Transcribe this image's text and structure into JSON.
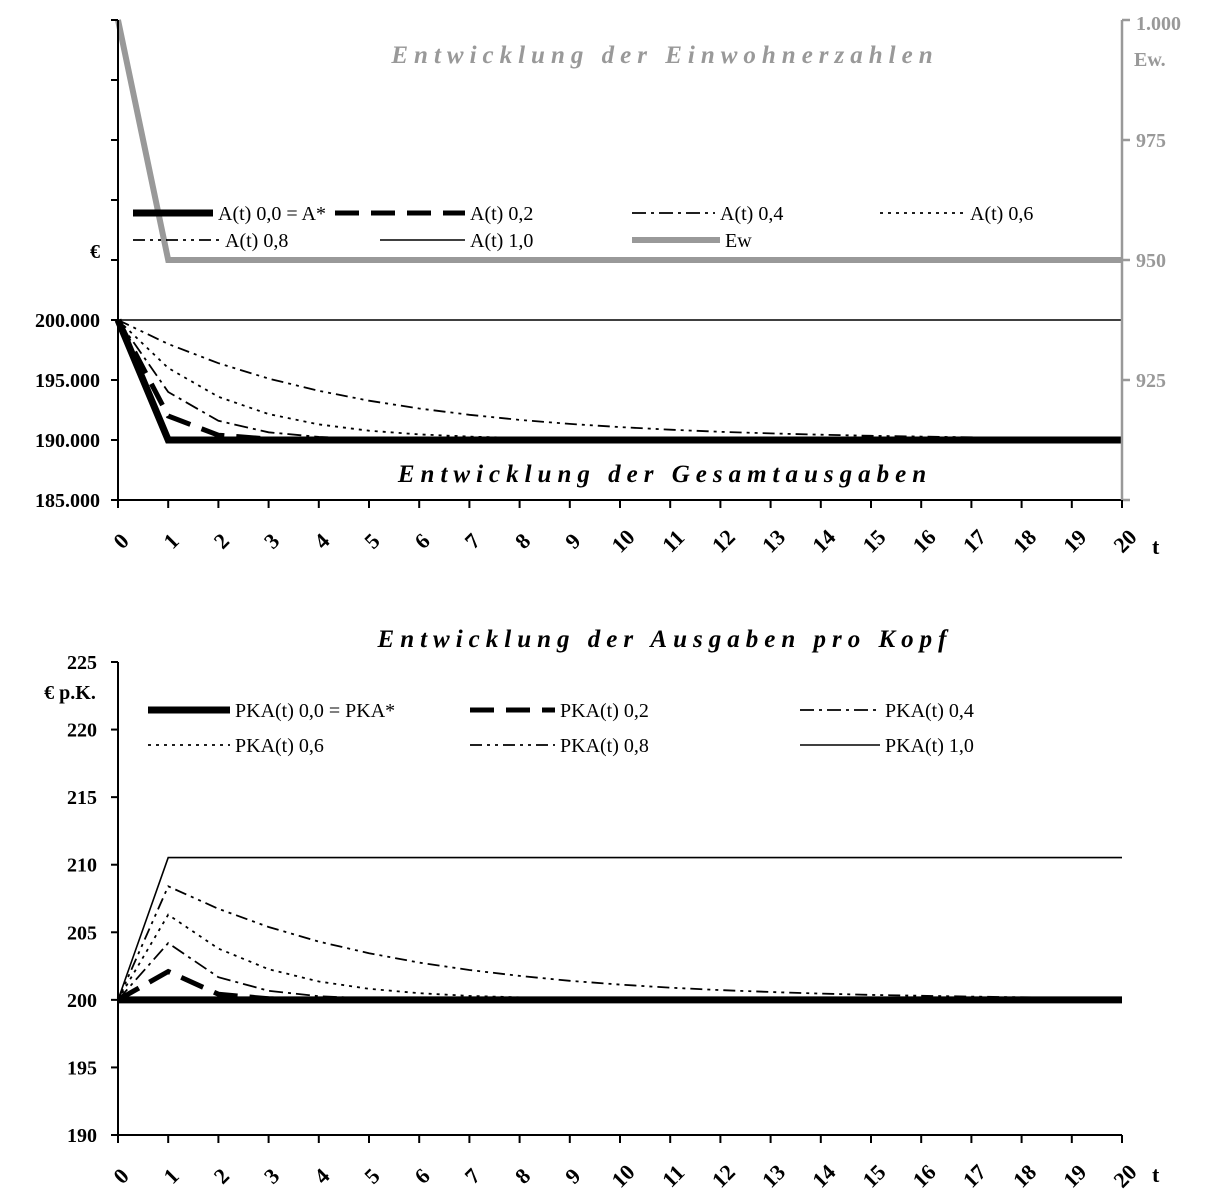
{
  "chart_data": [
    {
      "type": "line",
      "title": "Entwicklung der Gesamtausgaben",
      "right_axis_title": "Entwicklung der Einwohnerzahlen",
      "xlabel": "t",
      "ylabel": "€",
      "y2label": "Ew.",
      "x": [
        0,
        1,
        2,
        3,
        4,
        5,
        6,
        7,
        8,
        9,
        10,
        11,
        12,
        13,
        14,
        15,
        16,
        17,
        18,
        19,
        20
      ],
      "x_tick_labels": [
        "0",
        "1",
        "2",
        "3",
        "4",
        "5",
        "6",
        "7",
        "8",
        "9",
        "10",
        "11",
        "12",
        "13",
        "14",
        "15",
        "16",
        "17",
        "18",
        "19",
        "20"
      ],
      "ylim": [
        185000,
        225000
      ],
      "y_tick_labels": [
        "185.000",
        "190.000",
        "195.000",
        "200.000"
      ],
      "y2lim": [
        900,
        1000
      ],
      "y2_tick_labels": [
        "925",
        "950",
        "975",
        "1.000"
      ],
      "grid": false,
      "legend_position": "middle",
      "colors": {
        "series": "#000000",
        "ew": "#999999"
      },
      "series": [
        {
          "name": "A(t) 0,0 = A*",
          "axis": "left",
          "style": "thick-solid",
          "values": [
            200000,
            190000,
            190000,
            190000,
            190000,
            190000,
            190000,
            190000,
            190000,
            190000,
            190000,
            190000,
            190000,
            190000,
            190000,
            190000,
            190000,
            190000,
            190000,
            190000,
            190000
          ]
        },
        {
          "name": "A(t) 0,2",
          "axis": "left",
          "style": "thick-dash",
          "values": [
            200000,
            192000,
            190400,
            190080,
            190016,
            190003,
            190001,
            190000,
            190000,
            190000,
            190000,
            190000,
            190000,
            190000,
            190000,
            190000,
            190000,
            190000,
            190000,
            190000,
            190000
          ]
        },
        {
          "name": "A(t) 0,4",
          "axis": "left",
          "style": "dash-dot",
          "values": [
            200000,
            194000,
            191600,
            190640,
            190256,
            190102,
            190041,
            190016,
            190007,
            190003,
            190001,
            190000,
            190000,
            190000,
            190000,
            190000,
            190000,
            190000,
            190000,
            190000,
            190000
          ]
        },
        {
          "name": "A(t) 0,6",
          "axis": "left",
          "style": "dotted",
          "values": [
            200000,
            196000,
            193600,
            192160,
            191296,
            190778,
            190467,
            190280,
            190168,
            190101,
            190060,
            190036,
            190022,
            190013,
            190008,
            190005,
            190003,
            190002,
            190001,
            190001,
            190000
          ]
        },
        {
          "name": "A(t) 0,8",
          "axis": "left",
          "style": "dash-dot-dot",
          "values": [
            200000,
            198000,
            196400,
            195120,
            194096,
            193277,
            192621,
            192097,
            191678,
            191342,
            191074,
            190859,
            190687,
            190550,
            190440,
            190352,
            190281,
            190225,
            190180,
            190144,
            190115
          ]
        },
        {
          "name": "A(t) 1,0",
          "axis": "left",
          "style": "thin-solid",
          "values": [
            200000,
            200000,
            200000,
            200000,
            200000,
            200000,
            200000,
            200000,
            200000,
            200000,
            200000,
            200000,
            200000,
            200000,
            200000,
            200000,
            200000,
            200000,
            200000,
            200000,
            200000
          ]
        },
        {
          "name": "Ew",
          "axis": "right",
          "style": "gray-thick",
          "values": [
            1000,
            950,
            950,
            950,
            950,
            950,
            950,
            950,
            950,
            950,
            950,
            950,
            950,
            950,
            950,
            950,
            950,
            950,
            950,
            950,
            950
          ]
        }
      ]
    },
    {
      "type": "line",
      "title": "Entwicklung der Ausgaben pro Kopf",
      "xlabel": "t",
      "ylabel": "€ p.K.",
      "x": [
        0,
        1,
        2,
        3,
        4,
        5,
        6,
        7,
        8,
        9,
        10,
        11,
        12,
        13,
        14,
        15,
        16,
        17,
        18,
        19,
        20
      ],
      "x_tick_labels": [
        "0",
        "1",
        "2",
        "3",
        "4",
        "5",
        "6",
        "7",
        "8",
        "9",
        "10",
        "11",
        "12",
        "13",
        "14",
        "15",
        "16",
        "17",
        "18",
        "19",
        "20"
      ],
      "ylim": [
        190,
        225
      ],
      "y_tick_labels": [
        "190",
        "195",
        "200",
        "205",
        "210",
        "215",
        "220",
        "225"
      ],
      "grid": false,
      "legend_position": "top",
      "series": [
        {
          "name": "PKA(t) 0,0 = PKA*",
          "style": "thick-solid",
          "values": [
            200,
            200,
            200,
            200,
            200,
            200,
            200,
            200,
            200,
            200,
            200,
            200,
            200,
            200,
            200,
            200,
            200,
            200,
            200,
            200,
            200
          ]
        },
        {
          "name": "PKA(t) 0,2",
          "style": "thick-dash",
          "values": [
            200,
            202.1,
            200.42,
            200.08,
            200.02,
            200,
            200,
            200,
            200,
            200,
            200,
            200,
            200,
            200,
            200,
            200,
            200,
            200,
            200,
            200,
            200
          ]
        },
        {
          "name": "PKA(t) 0,4",
          "style": "dash-dot",
          "values": [
            200,
            204.2,
            201.68,
            200.67,
            200.27,
            200.11,
            200.04,
            200.02,
            200.01,
            200,
            200,
            200,
            200,
            200,
            200,
            200,
            200,
            200,
            200,
            200,
            200
          ]
        },
        {
          "name": "PKA(t) 0,6",
          "style": "dotted",
          "values": [
            200,
            206.3,
            203.79,
            202.27,
            201.36,
            200.82,
            200.49,
            200.29,
            200.18,
            200.11,
            200.06,
            200.04,
            200.02,
            200.01,
            200.01,
            200.01,
            200,
            200,
            200,
            200,
            200
          ]
        },
        {
          "name": "PKA(t) 0,8",
          "style": "dash-dot-dot",
          "values": [
            200,
            208.4,
            206.74,
            205.39,
            204.31,
            203.45,
            202.76,
            202.21,
            201.77,
            201.41,
            201.13,
            200.9,
            200.72,
            200.58,
            200.46,
            200.37,
            200.3,
            200.24,
            200.19,
            200.15,
            200.12
          ]
        },
        {
          "name": "PKA(t) 1,0",
          "style": "thin-solid",
          "values": [
            200,
            210.53,
            210.53,
            210.53,
            210.53,
            210.53,
            210.53,
            210.53,
            210.53,
            210.53,
            210.53,
            210.53,
            210.53,
            210.53,
            210.53,
            210.53,
            210.53,
            210.53,
            210.53,
            210.53,
            210.53
          ]
        }
      ]
    }
  ]
}
